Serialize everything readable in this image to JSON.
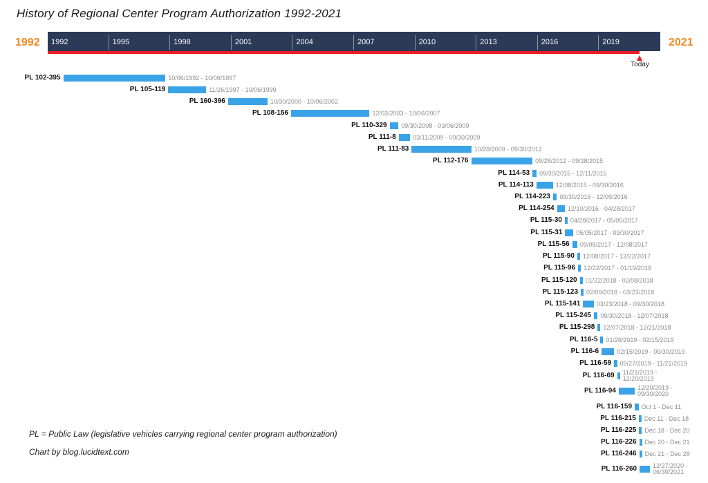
{
  "chart_data": {
    "type": "timeline",
    "title": "History of Regional Center Program Authorization 1992-2021",
    "axis_start_label": "1992",
    "axis_end_label": "2021",
    "x_range": [
      "1992-01-01",
      "2022-01-01"
    ],
    "ticks": [
      "1992",
      "1995",
      "1998",
      "2001",
      "2004",
      "2007",
      "2010",
      "2013",
      "2016",
      "2019"
    ],
    "today_label": "Today",
    "today_date": "2021-01-01",
    "colors": {
      "band": "#2b3a57",
      "bar": "#3aa3e8",
      "progress": "#ee1c24",
      "year": "#f28a22"
    },
    "series": [
      {
        "law": "PL 102-395",
        "start": "1992-10-06",
        "end": "1997-10-06",
        "dates_text": "10/06/1992 - 10/06/1997"
      },
      {
        "law": "PL 105-119",
        "start": "1997-11-26",
        "end": "1999-10-06",
        "dates_text": "11/26/1997 - 10/06/1999"
      },
      {
        "law": "PL 160-396",
        "start": "2000-10-30",
        "end": "2002-10-06",
        "dates_text": "10/30/2000 - 10/06/2002"
      },
      {
        "law": "PL 108-156",
        "start": "2003-12-03",
        "end": "2007-10-06",
        "dates_text": "12/03/2003 - 10/06/2007"
      },
      {
        "law": "PL 110-329",
        "start": "2008-09-30",
        "end": "2009-03-06",
        "dates_text": "09/30/2008 - 03/06/2009"
      },
      {
        "law": "PL 111-8",
        "start": "2009-03-11",
        "end": "2009-09-30",
        "dates_text": "03/11/2009 - 09/30/2009"
      },
      {
        "law": "PL 111-83",
        "start": "2009-10-28",
        "end": "2012-09-30",
        "dates_text": "10/28/2009 - 09/30/2012"
      },
      {
        "law": "PL 112-176",
        "start": "2012-09-28",
        "end": "2015-09-28",
        "dates_text": "09/28/2012 - 09/28/2015"
      },
      {
        "law": "PL 114-53",
        "start": "2015-09-30",
        "end": "2015-12-11",
        "dates_text": "09/30/2015 - 12/11/2015"
      },
      {
        "law": "PL 114-113",
        "start": "2015-12-08",
        "end": "2016-09-30",
        "dates_text": "12/08/2015 - 09/30/2016"
      },
      {
        "law": "PL 114-223",
        "start": "2016-09-30",
        "end": "2016-12-09",
        "dates_text": "09/30/2016 - 12/09/2016"
      },
      {
        "law": "PL 114-254",
        "start": "2016-12-10",
        "end": "2017-04-28",
        "dates_text": "12/10/2016 - 04/28/2017"
      },
      {
        "law": "PL 115-30",
        "start": "2017-04-28",
        "end": "2017-05-05",
        "dates_text": "04/28/2017 - 05/05/2017"
      },
      {
        "law": "PL 115-31",
        "start": "2017-05-05",
        "end": "2017-09-30",
        "dates_text": "05/05/2017 - 09/30/2017"
      },
      {
        "law": "PL 115-56",
        "start": "2017-09-08",
        "end": "2017-12-08",
        "dates_text": "09/08/2017 - 12/08/2017"
      },
      {
        "law": "PL 115-90",
        "start": "2017-12-08",
        "end": "2017-12-22",
        "dates_text": "12/08/2017 - 12/22/2017"
      },
      {
        "law": "PL 115-96",
        "start": "2017-12-22",
        "end": "2018-01-19",
        "dates_text": "12/22/2017 - 01/19/2018"
      },
      {
        "law": "PL 115-120",
        "start": "2018-01-22",
        "end": "2018-02-08",
        "dates_text": "01/22/2018 - 02/08/2018"
      },
      {
        "law": "PL 115-123",
        "start": "2018-02-09",
        "end": "2018-03-23",
        "dates_text": "02/09/2018 - 03/23/2018"
      },
      {
        "law": "PL 115-141",
        "start": "2018-03-23",
        "end": "2018-09-30",
        "dates_text": "03/23/2018 - 09/30/2018"
      },
      {
        "law": "PL 115-245",
        "start": "2018-09-30",
        "end": "2018-12-07",
        "dates_text": "09/30/2018 - 12/07/2018"
      },
      {
        "law": "PL 115-298",
        "start": "2018-12-07",
        "end": "2018-12-21",
        "dates_text": "12/07/2018 - 12/21/2018"
      },
      {
        "law": "PL 116-5",
        "start": "2019-01-26",
        "end": "2019-02-15",
        "dates_text": "01/26/2019 - 02/15/2019"
      },
      {
        "law": "PL 116-6",
        "start": "2019-02-15",
        "end": "2019-09-30",
        "dates_text": "02/15/2019 - 09/30/2019"
      },
      {
        "law": "PL 116-59",
        "start": "2019-09-27",
        "end": "2019-11-21",
        "dates_text": "09/27/2019 - 11/21/2019"
      },
      {
        "law": "PL 116-69",
        "start": "2019-11-21",
        "end": "2019-12-20",
        "dates_text": "11/21/2019 - 12/20/2019"
      },
      {
        "law": "PL 116-94",
        "start": "2019-12-20",
        "end": "2020-09-30",
        "dates_text": "12/20/2019 - 09/30/2020"
      },
      {
        "law": "PL 116-159",
        "start": "2020-10-01",
        "end": "2020-12-11",
        "dates_text": "Oct 1 - Dec 11"
      },
      {
        "law": "PL 116-215",
        "start": "2020-12-11",
        "end": "2020-12-18",
        "dates_text": "Dec 11 - Dec 18"
      },
      {
        "law": "PL 116-225",
        "start": "2020-12-18",
        "end": "2020-12-20",
        "dates_text": "Dec 18 - Dec 20"
      },
      {
        "law": "PL 116-226",
        "start": "2020-12-20",
        "end": "2020-12-21",
        "dates_text": "Dec 20 - Dec 21"
      },
      {
        "law": "PL 116-246",
        "start": "2020-12-21",
        "end": "2020-12-28",
        "dates_text": "Dec 21 - Dec 28"
      },
      {
        "law": "PL 116-260",
        "start": "2020-12-27",
        "end": "2021-06-30",
        "dates_text": "12/27/2020 - 06/30/2021"
      }
    ]
  },
  "footnotes": {
    "pl_note": "PL = Public Law (legislative vehicles carrying regional center program authorization)",
    "credit": "Chart by blog.lucidtext.com"
  }
}
